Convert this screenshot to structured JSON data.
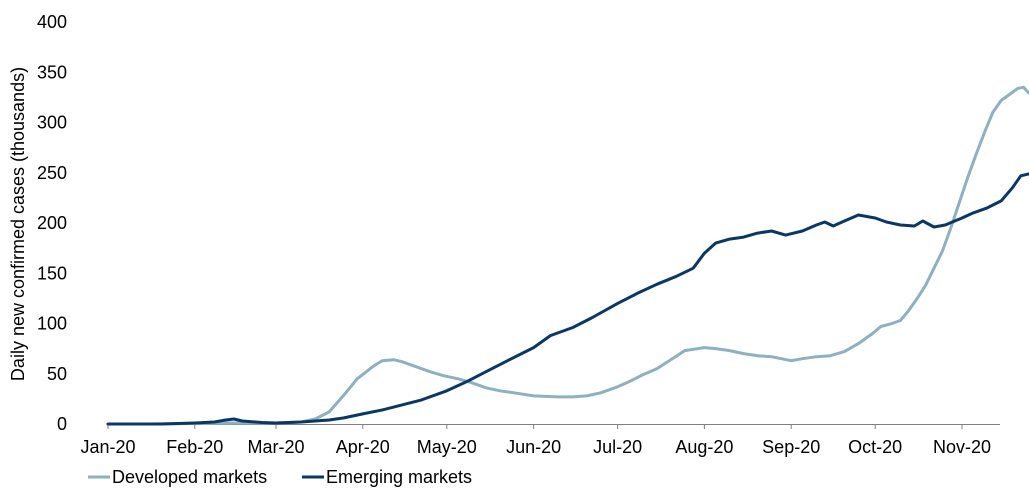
{
  "chart_data": {
    "type": "line",
    "title": "",
    "xlabel": "",
    "ylabel": "Daily new confirmed cases (thousands)",
    "ylim": [
      0,
      400
    ],
    "yticks": [
      "0",
      "50",
      "100",
      "150",
      "200",
      "250",
      "300",
      "350",
      "400"
    ],
    "xticks": [
      "Jan-20",
      "Feb-20",
      "Mar-20",
      "Apr-20",
      "May-20",
      "Jun-20",
      "Jul-20",
      "Aug-20",
      "Sep-20",
      "Oct-20",
      "Nov-20"
    ],
    "x_range": [
      "2020-01-01",
      "2020-11-26"
    ],
    "grid": false,
    "legend_position": "bottom-left",
    "series": [
      {
        "name": "Developed markets",
        "color": "#8FB0BF",
        "points": [
          [
            "2020-01-01",
            0
          ],
          [
            "2020-01-15",
            0
          ],
          [
            "2020-02-01",
            0.5
          ],
          [
            "2020-02-15",
            1
          ],
          [
            "2020-03-01",
            1
          ],
          [
            "2020-03-10",
            2
          ],
          [
            "2020-03-15",
            5
          ],
          [
            "2020-03-20",
            12
          ],
          [
            "2020-03-25",
            28
          ],
          [
            "2020-03-30",
            45
          ],
          [
            "2020-04-05",
            58
          ],
          [
            "2020-04-08",
            63
          ],
          [
            "2020-04-12",
            64
          ],
          [
            "2020-04-15",
            62
          ],
          [
            "2020-04-20",
            57
          ],
          [
            "2020-04-25",
            52
          ],
          [
            "2020-04-30",
            48
          ],
          [
            "2020-05-05",
            45
          ],
          [
            "2020-05-10",
            41
          ],
          [
            "2020-05-15",
            36
          ],
          [
            "2020-05-20",
            33
          ],
          [
            "2020-05-25",
            31
          ],
          [
            "2020-06-01",
            28
          ],
          [
            "2020-06-10",
            27
          ],
          [
            "2020-06-15",
            27
          ],
          [
            "2020-06-20",
            28
          ],
          [
            "2020-06-25",
            31
          ],
          [
            "2020-07-01",
            37
          ],
          [
            "2020-07-05",
            42
          ],
          [
            "2020-07-10",
            49
          ],
          [
            "2020-07-15",
            55
          ],
          [
            "2020-07-20",
            64
          ],
          [
            "2020-07-25",
            73
          ],
          [
            "2020-08-01",
            76
          ],
          [
            "2020-08-05",
            75
          ],
          [
            "2020-08-10",
            73
          ],
          [
            "2020-08-15",
            70
          ],
          [
            "2020-08-20",
            68
          ],
          [
            "2020-08-25",
            67
          ],
          [
            "2020-09-01",
            63
          ],
          [
            "2020-09-05",
            65
          ],
          [
            "2020-09-10",
            67
          ],
          [
            "2020-09-15",
            68
          ],
          [
            "2020-09-20",
            72
          ],
          [
            "2020-09-25",
            80
          ],
          [
            "2020-09-30",
            90
          ],
          [
            "2020-10-03",
            97
          ],
          [
            "2020-10-07",
            100
          ],
          [
            "2020-10-10",
            103
          ],
          [
            "2020-10-13",
            113
          ],
          [
            "2020-10-16",
            125
          ],
          [
            "2020-10-19",
            138
          ],
          [
            "2020-10-22",
            155
          ],
          [
            "2020-10-25",
            172
          ],
          [
            "2020-10-28",
            195
          ],
          [
            "2020-10-31",
            220
          ],
          [
            "2020-11-03",
            245
          ],
          [
            "2020-11-06",
            268
          ],
          [
            "2020-11-09",
            290
          ],
          [
            "2020-11-12",
            310
          ],
          [
            "2020-11-15",
            322
          ],
          [
            "2020-11-18",
            328
          ],
          [
            "2020-11-21",
            334
          ],
          [
            "2020-11-23",
            335
          ],
          [
            "2020-11-26",
            326
          ]
        ]
      },
      {
        "name": "Emerging markets",
        "color": "#0B3763",
        "points": [
          [
            "2020-01-01",
            0
          ],
          [
            "2020-01-20",
            0
          ],
          [
            "2020-02-01",
            1
          ],
          [
            "2020-02-08",
            2
          ],
          [
            "2020-02-12",
            4
          ],
          [
            "2020-02-15",
            5
          ],
          [
            "2020-02-18",
            3
          ],
          [
            "2020-02-25",
            1.5
          ],
          [
            "2020-03-01",
            1
          ],
          [
            "2020-03-10",
            2
          ],
          [
            "2020-03-20",
            4
          ],
          [
            "2020-03-25",
            6
          ],
          [
            "2020-04-01",
            10
          ],
          [
            "2020-04-08",
            14
          ],
          [
            "2020-04-15",
            19
          ],
          [
            "2020-04-22",
            24
          ],
          [
            "2020-05-01",
            33
          ],
          [
            "2020-05-08",
            42
          ],
          [
            "2020-05-15",
            52
          ],
          [
            "2020-05-22",
            62
          ],
          [
            "2020-06-01",
            76
          ],
          [
            "2020-06-07",
            88
          ],
          [
            "2020-06-15",
            96
          ],
          [
            "2020-06-22",
            106
          ],
          [
            "2020-07-01",
            120
          ],
          [
            "2020-07-08",
            130
          ],
          [
            "2020-07-15",
            139
          ],
          [
            "2020-07-22",
            147
          ],
          [
            "2020-07-28",
            155
          ],
          [
            "2020-08-01",
            170
          ],
          [
            "2020-08-05",
            180
          ],
          [
            "2020-08-10",
            184
          ],
          [
            "2020-08-15",
            186
          ],
          [
            "2020-08-20",
            190
          ],
          [
            "2020-08-25",
            192
          ],
          [
            "2020-08-30",
            188
          ],
          [
            "2020-09-05",
            192
          ],
          [
            "2020-09-10",
            198
          ],
          [
            "2020-09-13",
            201
          ],
          [
            "2020-09-16",
            197
          ],
          [
            "2020-09-20",
            202
          ],
          [
            "2020-09-25",
            208
          ],
          [
            "2020-10-01",
            205
          ],
          [
            "2020-10-05",
            201
          ],
          [
            "2020-10-10",
            198
          ],
          [
            "2020-10-15",
            197
          ],
          [
            "2020-10-18",
            202
          ],
          [
            "2020-10-22",
            196
          ],
          [
            "2020-10-26",
            198
          ],
          [
            "2020-11-01",
            205
          ],
          [
            "2020-11-05",
            210
          ],
          [
            "2020-11-10",
            215
          ],
          [
            "2020-11-15",
            222
          ],
          [
            "2020-11-19",
            235
          ],
          [
            "2020-11-22",
            247
          ],
          [
            "2020-11-25",
            249
          ],
          [
            "2020-11-26",
            246
          ]
        ]
      }
    ]
  }
}
